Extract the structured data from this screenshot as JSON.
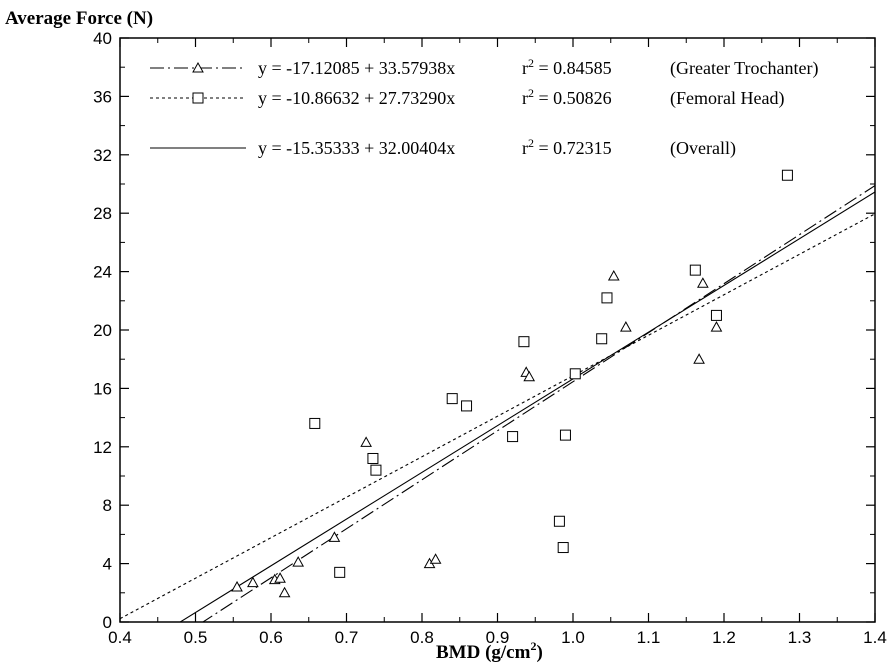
{
  "chart_data": {
    "type": "scatter",
    "ylabel": "Average Force (N)",
    "xlabel": "BMD (g/cm",
    "xlabel_sup": "2",
    "xlabel_close": ")",
    "xlim": [
      0.4,
      1.4
    ],
    "ylim": [
      0,
      40
    ],
    "xticks": [
      "0.4",
      "0.5",
      "0.6",
      "0.7",
      "0.8",
      "0.9",
      "1.0",
      "1.1",
      "1.2",
      "1.3",
      "1.4"
    ],
    "yticks": [
      "0",
      "4",
      "8",
      "12",
      "16",
      "20",
      "24",
      "28",
      "32",
      "36",
      "40"
    ],
    "grid": false,
    "legend_position": "top-right",
    "series": [
      {
        "name": "(Greater Trochanter)",
        "marker": "triangle",
        "line_style": "dash-dot",
        "equation": "y = -17.12085 + 33.57938x",
        "r2_label": "r",
        "r2_sup": "2",
        "r2_value": " = 0.84585",
        "intercept": -17.12085,
        "slope": 33.57938,
        "points": [
          {
            "x": 0.555,
            "y": 2.4
          },
          {
            "x": 0.576,
            "y": 2.7
          },
          {
            "x": 0.605,
            "y": 2.9
          },
          {
            "x": 0.612,
            "y": 3.0
          },
          {
            "x": 0.618,
            "y": 2.0
          },
          {
            "x": 0.636,
            "y": 4.1
          },
          {
            "x": 0.684,
            "y": 5.8
          },
          {
            "x": 0.726,
            "y": 12.3
          },
          {
            "x": 0.81,
            "y": 4.0
          },
          {
            "x": 0.818,
            "y": 4.3
          },
          {
            "x": 0.938,
            "y": 17.1
          },
          {
            "x": 0.942,
            "y": 16.8
          },
          {
            "x": 1.054,
            "y": 23.7
          },
          {
            "x": 1.07,
            "y": 20.2
          },
          {
            "x": 1.167,
            "y": 18.0
          },
          {
            "x": 1.172,
            "y": 23.2
          },
          {
            "x": 1.19,
            "y": 20.2
          }
        ]
      },
      {
        "name": "(Femoral Head)",
        "marker": "square",
        "line_style": "dotted",
        "equation": "y = -10.86632 + 27.73290x",
        "r2_label": "r",
        "r2_sup": "2",
        "r2_value": " = 0.50826",
        "intercept": -10.86632,
        "slope": 27.7329,
        "points": [
          {
            "x": 0.658,
            "y": 13.6
          },
          {
            "x": 0.691,
            "y": 3.4
          },
          {
            "x": 0.735,
            "y": 11.2
          },
          {
            "x": 0.739,
            "y": 10.4
          },
          {
            "x": 0.84,
            "y": 15.3
          },
          {
            "x": 0.859,
            "y": 14.8
          },
          {
            "x": 0.92,
            "y": 12.7
          },
          {
            "x": 0.935,
            "y": 19.2
          },
          {
            "x": 0.982,
            "y": 6.9
          },
          {
            "x": 0.987,
            "y": 5.1
          },
          {
            "x": 0.99,
            "y": 12.8
          },
          {
            "x": 1.003,
            "y": 17.0
          },
          {
            "x": 1.038,
            "y": 19.4
          },
          {
            "x": 1.045,
            "y": 22.2
          },
          {
            "x": 1.162,
            "y": 24.1
          },
          {
            "x": 1.19,
            "y": 21.0
          },
          {
            "x": 1.284,
            "y": 30.6
          }
        ]
      },
      {
        "name": "(Overall)",
        "marker": "none",
        "line_style": "solid",
        "equation": "y = -15.35333 + 32.00404x",
        "r2_label": "r",
        "r2_sup": "2",
        "r2_value": " = 0.72315",
        "intercept": -15.35333,
        "slope": 32.00404,
        "points": []
      }
    ]
  }
}
